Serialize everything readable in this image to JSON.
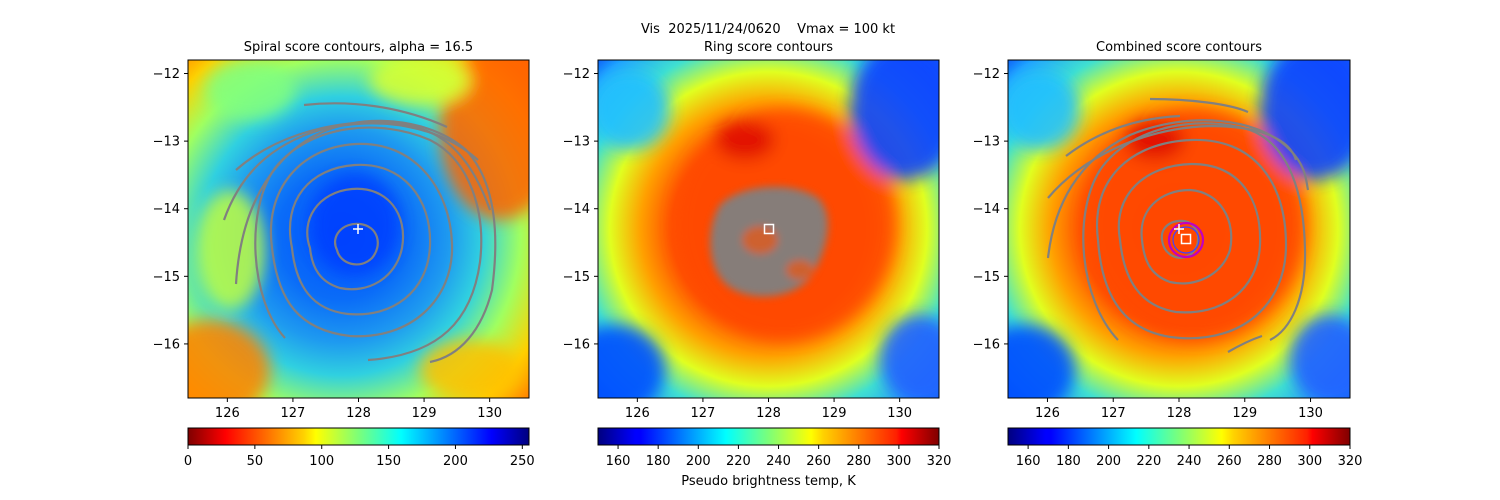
{
  "figure": {
    "suptitle": "Vis  2025/11/24/0620    Vmax = 100 kt",
    "colormap_name": "jet",
    "contour_color": "#808080",
    "marker_color": "#ffffff",
    "eye_circle_color": "#c000c0",
    "eye_circle_inner_color": "#4040ff"
  },
  "chart_data": [
    {
      "type": "heatmap",
      "title": "Spiral score contours, alpha = 16.5",
      "xlim": [
        125.4,
        130.6
      ],
      "ylim": [
        -16.8,
        -11.8
      ],
      "xticks": [
        126,
        127,
        128,
        129,
        130
      ],
      "yticks": [
        -12,
        -13,
        -14,
        -15,
        -16
      ],
      "center_marker": {
        "symbol": "+",
        "lon": 127.95,
        "lat": -14.3
      },
      "spiral_contour_count": 8,
      "colorbar": {
        "label": "",
        "min": 0,
        "max": 255,
        "ticks": [
          0,
          50,
          100,
          150,
          200,
          250
        ],
        "reversed": true
      }
    },
    {
      "type": "heatmap",
      "title": "Ring score contours",
      "xlim": [
        125.4,
        130.6
      ],
      "ylim": [
        -16.8,
        -11.8
      ],
      "xticks": [
        126,
        127,
        128,
        129,
        130
      ],
      "yticks": [
        -12,
        -13,
        -14,
        -15,
        -16
      ],
      "center_marker": {
        "symbol": "square",
        "lon": 127.95,
        "lat": -14.3
      },
      "colorbar": {
        "label": "Pseudo brightness temp, K",
        "min": 150,
        "max": 320,
        "ticks": [
          160,
          180,
          200,
          220,
          240,
          260,
          280,
          300,
          320
        ],
        "reversed": false
      }
    },
    {
      "type": "heatmap",
      "title": "Combined score contours",
      "xlim": [
        125.4,
        130.6
      ],
      "ylim": [
        -16.8,
        -11.8
      ],
      "xticks": [
        126,
        127,
        128,
        129,
        130
      ],
      "yticks": [
        -12,
        -13,
        -14,
        -15,
        -16
      ],
      "plus_marker": {
        "symbol": "+",
        "lon": 127.95,
        "lat": -14.3
      },
      "square_marker": {
        "symbol": "square",
        "lon": 128.05,
        "lat": -14.45
      },
      "eye_circle": {
        "lon": 128.05,
        "lat": -14.45,
        "radius_deg": 0.25
      },
      "colorbar": {
        "label": "",
        "min": 150,
        "max": 320,
        "ticks": [
          160,
          180,
          200,
          220,
          240,
          260,
          280,
          300,
          320
        ],
        "reversed": false
      }
    }
  ]
}
